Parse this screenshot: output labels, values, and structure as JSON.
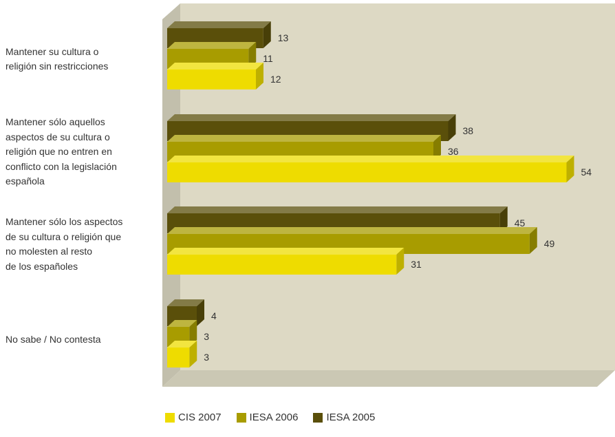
{
  "chart_data": {
    "type": "bar",
    "orientation": "horizontal",
    "style": "3d",
    "categories": [
      "Mantener su cultura o religión sin restricciones",
      "Mantener sólo aquellos aspectos de su cultura o religión que no entren en conflicto con la legislación española",
      "Mantener sólo los aspectos de su cultura o religión que no molesten al resto de los españoles",
      "No sabe / No contesta"
    ],
    "category_lines": [
      [
        "Mantener su cultura o",
        "religión sin restricciones"
      ],
      [
        "Mantener sólo aquellos",
        "aspectos de su cultura o",
        "religión que no entren en",
        "conflicto con la legislación",
        "española"
      ],
      [
        "Mantener sólo los aspectos",
        "de su cultura o religión que",
        "no molesten al resto",
        "de los españoles"
      ],
      [
        "No sabe / No contesta"
      ]
    ],
    "series": [
      {
        "name": "IESA 2005",
        "color": "#5a4f0a",
        "values": [
          13,
          38,
          45,
          4
        ]
      },
      {
        "name": "IESA 2006",
        "color": "#a89c00",
        "values": [
          11,
          36,
          49,
          3
        ]
      },
      {
        "name": "CIS 2007",
        "color": "#eedc00",
        "values": [
          12,
          54,
          31,
          3
        ]
      }
    ],
    "legend_order": [
      "CIS 2007",
      "IESA 2006",
      "IESA 2005"
    ],
    "legend_position": "bottom",
    "xlim": [
      0,
      60
    ],
    "grid": false,
    "wall_color": "#ddd9c4"
  }
}
